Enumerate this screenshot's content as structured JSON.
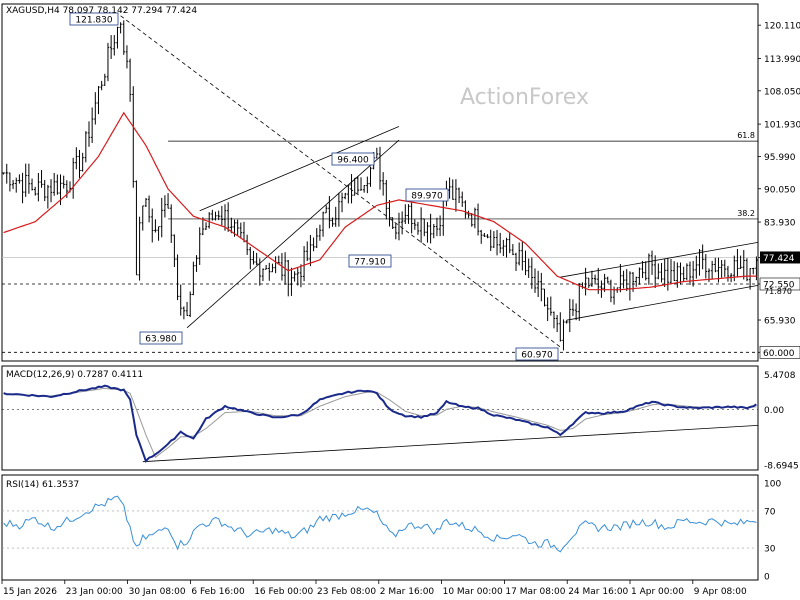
{
  "chart_data": {
    "type": "candlestick",
    "symbol_line": "XAGUSD,H4  78.097 78.142 77.294 77.424",
    "watermark": "ActionForex",
    "x_ticks": [
      "15 Jan 2026",
      "23 Jan 00:00",
      "30 Jan 08:00",
      "6 Feb 16:00",
      "16 Feb 00:00",
      "23 Feb 08:00",
      "2 Mar 16:00",
      "10 Mar 00:00",
      "17 Mar 08:00",
      "24 Mar 16:00",
      "1 Apr 00:00",
      "9 Apr 08:00"
    ],
    "price": {
      "ylim": [
        58.4,
        124.0
      ],
      "y_ticks": [
        "120.110",
        "113.990",
        "108.050",
        "101.930",
        "95.990",
        "90.050",
        "83.930",
        "77.424",
        "72.550",
        "65.930",
        "60.000"
      ],
      "current_price": "77.424",
      "current_price_value": 77.424,
      "line_72_550": "72.550",
      "level_60": "60.000",
      "fib_levels": [
        {
          "label": "61.8",
          "value": 98.8
        },
        {
          "label": "38.2",
          "value": 84.5
        }
      ],
      "extra_tick": "71.870",
      "swing_labels": [
        {
          "text": "121.830",
          "value": 121.83,
          "bar": 37
        },
        {
          "text": "63.980",
          "value": 63.98,
          "bar": 58
        },
        {
          "text": "96.400",
          "value": 96.4,
          "bar": 118
        },
        {
          "text": "77.910",
          "value": 77.91,
          "bar": 121
        },
        {
          "text": "89.970",
          "value": 89.97,
          "bar": 140
        },
        {
          "text": "60.970",
          "value": 60.97,
          "bar": 176
        }
      ],
      "close_anchors": [
        [
          0,
          93
        ],
        [
          10,
          90
        ],
        [
          20,
          91
        ],
        [
          25,
          96
        ],
        [
          30,
          108
        ],
        [
          35,
          118
        ],
        [
          37,
          121
        ],
        [
          40,
          108
        ],
        [
          42,
          76
        ],
        [
          44,
          88
        ],
        [
          48,
          82
        ],
        [
          52,
          88
        ],
        [
          55,
          72
        ],
        [
          58,
          66
        ],
        [
          62,
          82
        ],
        [
          68,
          86
        ],
        [
          72,
          84
        ],
        [
          78,
          76
        ],
        [
          85,
          76
        ],
        [
          92,
          74
        ],
        [
          98,
          79
        ],
        [
          100,
          84
        ],
        [
          105,
          86
        ],
        [
          110,
          90
        ],
        [
          115,
          93
        ],
        [
          118,
          95
        ],
        [
          120,
          91
        ],
        [
          123,
          83
        ],
        [
          127,
          86
        ],
        [
          132,
          84
        ],
        [
          137,
          83
        ],
        [
          140,
          90
        ],
        [
          145,
          87
        ],
        [
          150,
          84
        ],
        [
          156,
          80
        ],
        [
          162,
          78
        ],
        [
          168,
          72
        ],
        [
          172,
          68
        ],
        [
          176,
          62
        ],
        [
          180,
          68
        ],
        [
          184,
          73
        ],
        [
          188,
          72
        ],
        [
          195,
          72
        ],
        [
          200,
          75
        ],
        [
          205,
          76
        ],
        [
          210,
          74
        ],
        [
          215,
          74
        ],
        [
          220,
          77
        ],
        [
          225,
          76
        ],
        [
          230,
          76
        ],
        [
          235,
          75
        ],
        [
          238,
          77.4
        ]
      ],
      "ma_anchors": [
        [
          0,
          82
        ],
        [
          10,
          84
        ],
        [
          20,
          89
        ],
        [
          30,
          96
        ],
        [
          38,
          104
        ],
        [
          45,
          98
        ],
        [
          52,
          90
        ],
        [
          60,
          85
        ],
        [
          70,
          83
        ],
        [
          80,
          79
        ],
        [
          90,
          75
        ],
        [
          100,
          77
        ],
        [
          108,
          83
        ],
        [
          118,
          87
        ],
        [
          125,
          88
        ],
        [
          135,
          87
        ],
        [
          145,
          86
        ],
        [
          155,
          84
        ],
        [
          165,
          80
        ],
        [
          175,
          74
        ],
        [
          185,
          71.5
        ],
        [
          195,
          71.5
        ],
        [
          205,
          72
        ],
        [
          215,
          73
        ],
        [
          225,
          73.5
        ],
        [
          235,
          74
        ],
        [
          238,
          74
        ]
      ]
    },
    "macd": {
      "label": "MACD(12,26,9) 0.7287 0.4111",
      "ylim": [
        -9.5,
        6.8
      ],
      "y_ticks": [
        "5.4708",
        "0.00",
        "-8.6945"
      ],
      "main_anchors": [
        [
          0,
          2.5
        ],
        [
          15,
          2.0
        ],
        [
          25,
          3.0
        ],
        [
          32,
          3.6
        ],
        [
          38,
          3.0
        ],
        [
          40,
          1.5
        ],
        [
          42,
          -4
        ],
        [
          45,
          -8.0
        ],
        [
          48,
          -7
        ],
        [
          52,
          -5.5
        ],
        [
          56,
          -3.5
        ],
        [
          60,
          -4.6
        ],
        [
          64,
          -1.5
        ],
        [
          70,
          0.5
        ],
        [
          78,
          -0.5
        ],
        [
          86,
          -1.3
        ],
        [
          94,
          -0.8
        ],
        [
          100,
          1.5
        ],
        [
          108,
          2.6
        ],
        [
          115,
          3.0
        ],
        [
          118,
          2.5
        ],
        [
          122,
          0
        ],
        [
          127,
          -1.0
        ],
        [
          132,
          -1.2
        ],
        [
          137,
          -0.6
        ],
        [
          140,
          1.2
        ],
        [
          145,
          0.4
        ],
        [
          150,
          0.2
        ],
        [
          155,
          -0.9
        ],
        [
          162,
          -1.6
        ],
        [
          168,
          -2.4
        ],
        [
          172,
          -2.8
        ],
        [
          176,
          -4.0
        ],
        [
          180,
          -2.2
        ],
        [
          184,
          -0.5
        ],
        [
          190,
          -0.6
        ],
        [
          196,
          -0.3
        ],
        [
          200,
          0.4
        ],
        [
          205,
          1.2
        ],
        [
          208,
          0.8
        ],
        [
          212,
          0.5
        ],
        [
          218,
          0.2
        ],
        [
          224,
          0.3
        ],
        [
          230,
          0.4
        ],
        [
          235,
          0.2
        ],
        [
          238,
          0.7
        ]
      ],
      "signal_anchors": [
        [
          0,
          2.4
        ],
        [
          15,
          2.1
        ],
        [
          25,
          2.8
        ],
        [
          32,
          3.3
        ],
        [
          38,
          3.0
        ],
        [
          40,
          2.5
        ],
        [
          42,
          0
        ],
        [
          45,
          -4
        ],
        [
          48,
          -7.5
        ],
        [
          52,
          -6
        ],
        [
          56,
          -4.3
        ],
        [
          60,
          -4.2
        ],
        [
          64,
          -3
        ],
        [
          70,
          -0.5
        ],
        [
          78,
          -0.3
        ],
        [
          86,
          -1.0
        ],
        [
          94,
          -1.0
        ],
        [
          100,
          0.5
        ],
        [
          108,
          2.0
        ],
        [
          115,
          2.7
        ],
        [
          118,
          2.7
        ],
        [
          122,
          1.5
        ],
        [
          127,
          -0.3
        ],
        [
          132,
          -1.0
        ],
        [
          137,
          -0.9
        ],
        [
          140,
          0
        ],
        [
          145,
          0.5
        ],
        [
          150,
          0.3
        ],
        [
          155,
          -0.4
        ],
        [
          162,
          -1.2
        ],
        [
          168,
          -2.0
        ],
        [
          172,
          -2.5
        ],
        [
          176,
          -3.3
        ],
        [
          180,
          -3.0
        ],
        [
          184,
          -1.5
        ],
        [
          190,
          -0.8
        ],
        [
          196,
          -0.5
        ],
        [
          200,
          0
        ],
        [
          205,
          0.7
        ],
        [
          208,
          0.9
        ],
        [
          212,
          0.7
        ],
        [
          218,
          0.4
        ],
        [
          224,
          0.3
        ],
        [
          230,
          0.35
        ],
        [
          235,
          0.3
        ],
        [
          238,
          0.4
        ]
      ]
    },
    "rsi": {
      "label": "RSI(14) 61.3537",
      "ylim": [
        0,
        100
      ],
      "y_ticks": [
        "100",
        "70",
        "30",
        "0"
      ],
      "level_lines": [
        70,
        30
      ],
      "anchors": [
        [
          0,
          57
        ],
        [
          5,
          55
        ],
        [
          10,
          62
        ],
        [
          15,
          52
        ],
        [
          20,
          59
        ],
        [
          25,
          68
        ],
        [
          28,
          73
        ],
        [
          32,
          78
        ],
        [
          36,
          84
        ],
        [
          38,
          72
        ],
        [
          40,
          52
        ],
        [
          42,
          28
        ],
        [
          44,
          40
        ],
        [
          48,
          45
        ],
        [
          52,
          54
        ],
        [
          55,
          33
        ],
        [
          58,
          38
        ],
        [
          62,
          55
        ],
        [
          68,
          60
        ],
        [
          72,
          52
        ],
        [
          78,
          44
        ],
        [
          85,
          50
        ],
        [
          92,
          42
        ],
        [
          98,
          54
        ],
        [
          100,
          62
        ],
        [
          105,
          64
        ],
        [
          110,
          70
        ],
        [
          115,
          71
        ],
        [
          118,
          66
        ],
        [
          120,
          55
        ],
        [
          123,
          42
        ],
        [
          127,
          54
        ],
        [
          132,
          55
        ],
        [
          137,
          48
        ],
        [
          140,
          60
        ],
        [
          145,
          54
        ],
        [
          150,
          49
        ],
        [
          156,
          40
        ],
        [
          162,
          45
        ],
        [
          168,
          35
        ],
        [
          172,
          35
        ],
        [
          176,
          30
        ],
        [
          180,
          45
        ],
        [
          184,
          55
        ],
        [
          188,
          52
        ],
        [
          195,
          53
        ],
        [
          200,
          58
        ],
        [
          205,
          58
        ],
        [
          210,
          52
        ],
        [
          215,
          60
        ],
        [
          220,
          58
        ],
        [
          225,
          60
        ],
        [
          230,
          55
        ],
        [
          235,
          58
        ],
        [
          238,
          61
        ]
      ]
    }
  }
}
